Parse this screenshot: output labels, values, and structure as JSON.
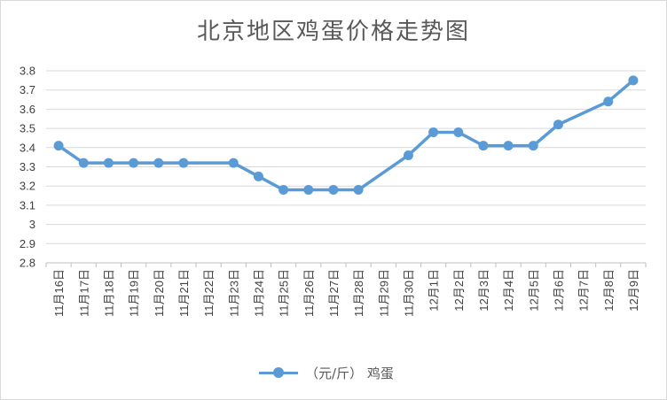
{
  "chart_data": {
    "type": "line",
    "title": "北京地区鸡蛋价格走势图",
    "xlabel": "",
    "ylabel": "",
    "ylim": [
      2.8,
      3.8
    ],
    "yticks": [
      "2.8",
      "2.9",
      "3",
      "3.1",
      "3.2",
      "3.3",
      "3.4",
      "3.5",
      "3.6",
      "3.7",
      "3.8"
    ],
    "grid": true,
    "legend_position": "bottom",
    "categories": [
      "11月16日",
      "11月17日",
      "11月18日",
      "11月19日",
      "11月20日",
      "11月21日",
      "11月22日",
      "11月23日",
      "11月24日",
      "11月25日",
      "11月26日",
      "11月27日",
      "11月28日",
      "11月29日",
      "11月30日",
      "12月1日",
      "12月2日",
      "12月3日",
      "12月4日",
      "12月5日",
      "12月6日",
      "12月7日",
      "12月8日",
      "12月9日"
    ],
    "series": [
      {
        "name": "（元/斤） 鸡蛋",
        "color": "#5b9bd5",
        "values": [
          3.41,
          3.32,
          3.32,
          3.32,
          3.32,
          3.32,
          null,
          3.32,
          3.25,
          3.18,
          3.18,
          3.18,
          3.18,
          null,
          3.36,
          3.48,
          3.48,
          3.41,
          3.41,
          3.41,
          3.52,
          null,
          3.64,
          3.75
        ]
      }
    ]
  }
}
